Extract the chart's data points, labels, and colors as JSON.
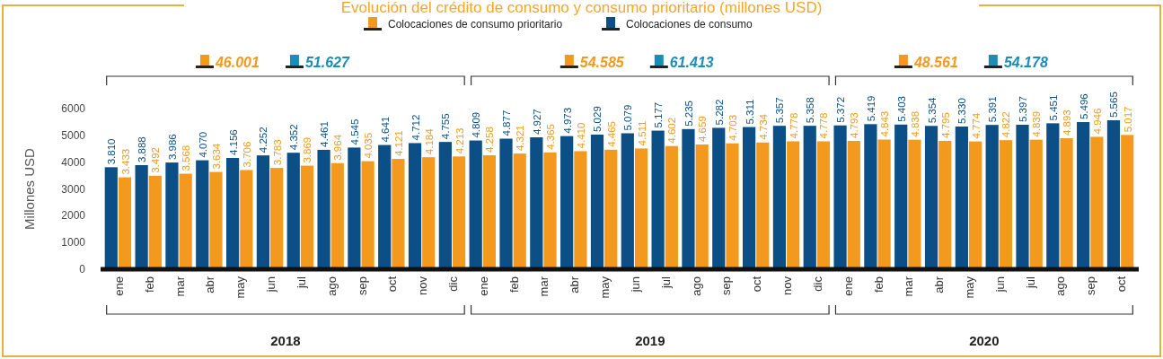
{
  "chart_data": {
    "type": "bar",
    "title": "Evolución del crédito de consumo y consumo prioritario (millones USD)",
    "ylabel": "Millones USD",
    "categories": [
      "ene",
      "feb",
      "mar",
      "abr",
      "may",
      "jun",
      "jul",
      "ago",
      "sep",
      "oct",
      "nov",
      "dic",
      "ene",
      "feb",
      "mar",
      "abr",
      "may",
      "jun",
      "jul",
      "ago",
      "sep",
      "oct",
      "nov",
      "dic",
      "ene",
      "feb",
      "mar",
      "abr",
      "may",
      "jun",
      "jul",
      "ago",
      "sep",
      "oct"
    ],
    "series": [
      {
        "name": "Colocaciones de consumo",
        "color": "#0b4f86",
        "values": [
          3810,
          3888,
          3986,
          4070,
          4156,
          4252,
          4352,
          4461,
          4545,
          4641,
          4712,
          4755,
          4809,
          4877,
          4927,
          4973,
          5029,
          5079,
          5177,
          5235,
          5282,
          5311,
          5357,
          5358,
          5372,
          5419,
          5403,
          5354,
          5330,
          5391,
          5397,
          5451,
          5496,
          5565
        ],
        "value_labels": [
          "3.810",
          "3.888",
          "3.986",
          "4.070",
          "4.156",
          "4.252",
          "4.352",
          "4.461",
          "4.545",
          "4.641",
          "4.712",
          "4.755",
          "4.809",
          "4.877",
          "4.927",
          "4.973",
          "5.029",
          "5.079",
          "5.177",
          "5.235",
          "5.282",
          "5.311",
          "5.357",
          "5.358",
          "5.372",
          "5.419",
          "5.403",
          "5.354",
          "5.330",
          "5.391",
          "5.397",
          "5.451",
          "5.496",
          "5.565"
        ]
      },
      {
        "name": "Colocaciones de consumo prioritario",
        "color": "#f39a1e",
        "values": [
          3433,
          3492,
          3568,
          3634,
          3706,
          3783,
          3869,
          3964,
          4035,
          4121,
          4184,
          4213,
          4258,
          4321,
          4365,
          4410,
          4465,
          4511,
          4602,
          4659,
          4703,
          4734,
          4778,
          4778,
          4793,
          4843,
          4838,
          4795,
          4774,
          4822,
          4839,
          4893,
          4946,
          5017
        ],
        "value_labels": [
          "3.433",
          "3.492",
          "3.568",
          "3.634",
          "3.706",
          "3.783",
          "3.869",
          "3.964",
          "4.035",
          "4.121",
          "4.184",
          "4.213",
          "4.258",
          "4.321",
          "4.365",
          "4.410",
          "4.465",
          "4.511",
          "4.602",
          "4.659",
          "4.703",
          "4.734",
          "4.778",
          "4.778",
          "4.793",
          "4.843",
          "4.838",
          "4.795",
          "4.774",
          "4.822",
          "4.839",
          "4.893",
          "4.946",
          "5.017"
        ]
      }
    ],
    "ylim": [
      0,
      6000
    ],
    "yticks": [
      0,
      1000,
      2000,
      3000,
      4000,
      5000,
      6000
    ],
    "legend": "top",
    "grid": false,
    "annotations": [
      "46.001",
      "51.627",
      "2018",
      "54.585",
      "61.413",
      "2019",
      "48.561",
      "54.178",
      "2020"
    ]
  }
}
